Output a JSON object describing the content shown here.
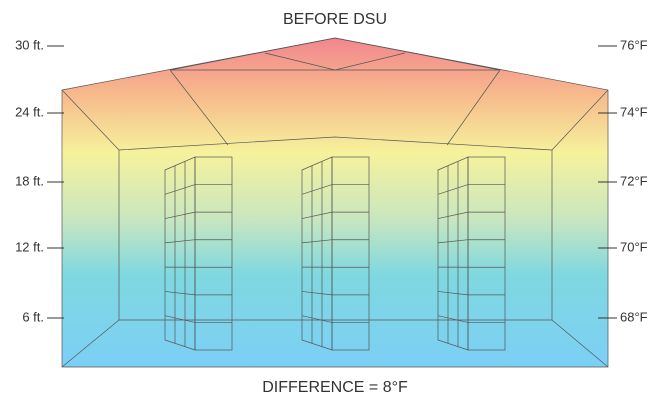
{
  "title": "BEFORE DSU",
  "footer": "DIFFERENCE = 8°F",
  "height_labels": [
    "30 ft.",
    "24 ft.",
    "18 ft.",
    "12 ft.",
    "6 ft."
  ],
  "temperature_labels": [
    "76°F",
    "74°F",
    "72°F",
    "70°F",
    "68°F"
  ]
}
